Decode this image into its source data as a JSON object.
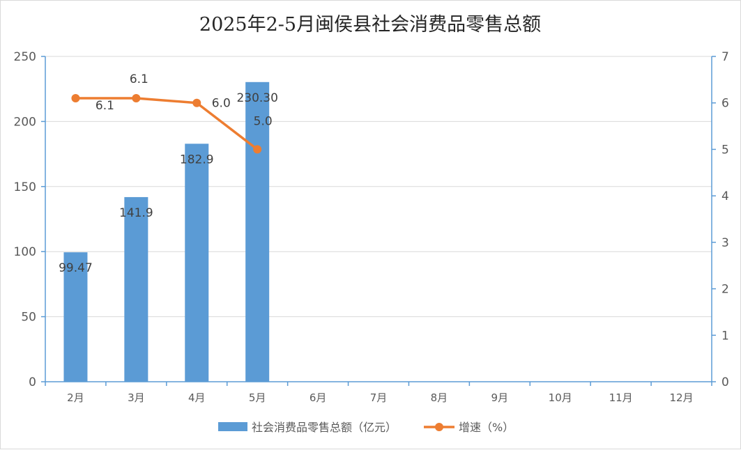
{
  "chart_data": {
    "title": "2025年2-5月闽侯县社会消费品零售总额",
    "categories": [
      "2月",
      "3月",
      "4月",
      "5月",
      "6月",
      "7月",
      "8月",
      "9月",
      "10月",
      "11月",
      "12月"
    ],
    "y_left": {
      "ylim": [
        0,
        250
      ],
      "ticks": [
        "0",
        "50",
        "100",
        "150",
        "200",
        "250"
      ]
    },
    "y_right": {
      "ylim": [
        0,
        7
      ],
      "ticks": [
        "0",
        "1",
        "2",
        "3",
        "4",
        "5",
        "6",
        "7"
      ]
    },
    "gridlines": true,
    "legend_position": "bottom",
    "series": [
      {
        "name": "社会消费品零售总额（亿元）",
        "type": "bar",
        "axis": "left",
        "color": "#5b9bd5",
        "values": [
          99.47,
          141.9,
          182.9,
          230.3,
          null,
          null,
          null,
          null,
          null,
          null,
          null
        ],
        "labels": [
          "99.47",
          "141.9",
          "182.9",
          "230.30"
        ]
      },
      {
        "name": "增速（%）",
        "type": "line",
        "axis": "right",
        "color": "#ed7d31",
        "values": [
          6.1,
          6.1,
          6.0,
          5.0,
          null,
          null,
          null,
          null,
          null,
          null,
          null
        ],
        "labels": [
          "6.1",
          "6.1",
          "6.0",
          "5.0"
        ]
      }
    ]
  }
}
